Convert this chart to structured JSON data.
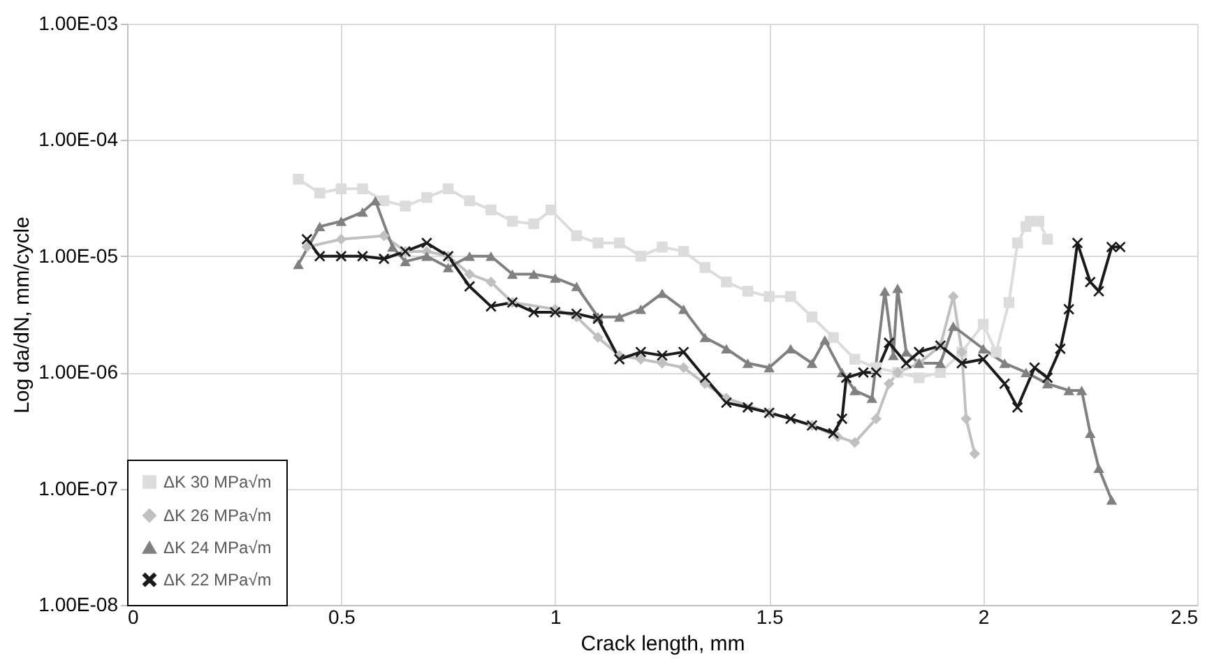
{
  "chart_data": {
    "type": "line",
    "xlabel": "Crack length, mm",
    "ylabel": "Log da/dN, mm/cycle",
    "log": "y",
    "grid": true,
    "legend": "bottom left",
    "line_style": "solid",
    "xlim": [
      0,
      2.5
    ],
    "xticks": [
      0,
      0.5,
      1,
      1.5,
      2,
      2.5
    ],
    "ylim": [
      1e-08,
      0.001
    ],
    "yticks": [
      {
        "value": 1e-08,
        "label": "1.00E-08"
      },
      {
        "value": 1e-07,
        "label": "1.00E-07"
      },
      {
        "value": 1e-06,
        "label": "1.00E-06"
      },
      {
        "value": 1e-05,
        "label": "1.00E-05"
      },
      {
        "value": 0.0001,
        "label": "1.00E-04"
      },
      {
        "value": 0.001,
        "label": "1.00E-03"
      }
    ],
    "series": [
      {
        "name": "ΔK 30 MPa√m",
        "color": "#dcdcdc",
        "marker": "square",
        "x": [
          0.4,
          0.45,
          0.5,
          0.55,
          0.6,
          0.65,
          0.7,
          0.75,
          0.8,
          0.85,
          0.9,
          0.95,
          0.99,
          1.05,
          1.1,
          1.15,
          1.2,
          1.25,
          1.3,
          1.35,
          1.4,
          1.45,
          1.5,
          1.55,
          1.6,
          1.65,
          1.7,
          1.75,
          1.8,
          1.85,
          1.9,
          1.95,
          2.0,
          2.03,
          2.06,
          2.08,
          2.1,
          2.11,
          2.13,
          2.15
        ],
        "values": [
          4.6e-05,
          3.5e-05,
          3.8e-05,
          3.8e-05,
          3e-05,
          2.7e-05,
          3.2e-05,
          3.8e-05,
          3e-05,
          2.5e-05,
          2e-05,
          1.9e-05,
          2.5e-05,
          1.5e-05,
          1.3e-05,
          1.3e-05,
          1e-05,
          1.2e-05,
          1.1e-05,
          8e-06,
          6e-06,
          5e-06,
          4.5e-06,
          4.5e-06,
          3e-06,
          2e-06,
          1.3e-06,
          1.1e-06,
          1e-06,
          9e-07,
          1e-06,
          1.5e-06,
          2.6e-06,
          1.5e-06,
          4e-06,
          1.3e-05,
          1.8e-05,
          2e-05,
          2e-05,
          1.4e-05
        ]
      },
      {
        "name": "ΔK 26 MPa√m",
        "color": "#c0c0c0",
        "marker": "diamond",
        "x": [
          0.42,
          0.5,
          0.6,
          0.65,
          0.7,
          0.75,
          0.8,
          0.85,
          0.9,
          1.0,
          1.05,
          1.1,
          1.15,
          1.2,
          1.25,
          1.3,
          1.35,
          1.4,
          1.5,
          1.6,
          1.66,
          1.7,
          1.75,
          1.78,
          1.8,
          1.85,
          1.9,
          1.93,
          1.95,
          1.96,
          1.98
        ],
        "values": [
          1.2e-05,
          1.4e-05,
          1.5e-05,
          1.1e-05,
          1.1e-05,
          1e-05,
          7e-06,
          6e-06,
          4e-06,
          3.5e-06,
          3e-06,
          2e-06,
          1.4e-06,
          1.3e-06,
          1.2e-06,
          1.1e-06,
          8e-07,
          6e-07,
          4.5e-07,
          3.5e-07,
          2.8e-07,
          2.5e-07,
          4e-07,
          8e-07,
          1e-06,
          1.2e-06,
          1.7e-06,
          4.5e-06,
          1.5e-06,
          4e-07,
          2e-07
        ]
      },
      {
        "name": "ΔK 24 MPa√m",
        "color": "#808080",
        "marker": "triangle",
        "x": [
          0.4,
          0.45,
          0.5,
          0.55,
          0.58,
          0.62,
          0.65,
          0.7,
          0.75,
          0.8,
          0.85,
          0.9,
          0.95,
          1.0,
          1.05,
          1.1,
          1.15,
          1.2,
          1.25,
          1.3,
          1.35,
          1.4,
          1.45,
          1.5,
          1.55,
          1.6,
          1.63,
          1.67,
          1.7,
          1.74,
          1.77,
          1.79,
          1.8,
          1.82,
          1.85,
          1.9,
          1.93,
          2.0,
          2.05,
          2.1,
          2.15,
          2.2,
          2.23,
          2.25,
          2.27,
          2.3
        ],
        "values": [
          8.5e-06,
          1.8e-05,
          2e-05,
          2.4e-05,
          3e-05,
          1.2e-05,
          9e-06,
          1e-05,
          8e-06,
          1e-05,
          1e-05,
          7e-06,
          7e-06,
          6.5e-06,
          5.5e-06,
          3e-06,
          3e-06,
          3.5e-06,
          4.8e-06,
          3.5e-06,
          2e-06,
          1.6e-06,
          1.2e-06,
          1.1e-06,
          1.6e-06,
          1.2e-06,
          1.9e-06,
          1e-06,
          7e-07,
          6e-07,
          5e-06,
          1.4e-06,
          5.3e-06,
          1.5e-06,
          1.2e-06,
          1.2e-06,
          2.5e-06,
          1.6e-06,
          1.2e-06,
          1e-06,
          8e-07,
          7e-07,
          7e-07,
          3e-07,
          1.5e-07,
          8e-08
        ]
      },
      {
        "name": "ΔK 22 MPa√m",
        "color": "#1a1a1a",
        "marker": "cross",
        "x": [
          0.42,
          0.45,
          0.5,
          0.55,
          0.6,
          0.65,
          0.7,
          0.75,
          0.8,
          0.85,
          0.9,
          0.95,
          1.0,
          1.05,
          1.1,
          1.15,
          1.2,
          1.25,
          1.3,
          1.35,
          1.4,
          1.45,
          1.5,
          1.55,
          1.6,
          1.65,
          1.67,
          1.68,
          1.72,
          1.75,
          1.78,
          1.82,
          1.85,
          1.9,
          1.95,
          2.0,
          2.05,
          2.08,
          2.12,
          2.15,
          2.18,
          2.2,
          2.22,
          2.25,
          2.27,
          2.3,
          2.32
        ],
        "values": [
          1.4e-05,
          1e-05,
          1e-05,
          1e-05,
          9.5e-06,
          1.1e-05,
          1.3e-05,
          1e-05,
          5.5e-06,
          3.7e-06,
          4e-06,
          3.3e-06,
          3.3e-06,
          3.2e-06,
          2.9e-06,
          1.3e-06,
          1.5e-06,
          1.4e-06,
          1.5e-06,
          9e-07,
          5.5e-07,
          5e-07,
          4.5e-07,
          4e-07,
          3.5e-07,
          3e-07,
          4e-07,
          9e-07,
          1e-06,
          1e-06,
          1.8e-06,
          1.2e-06,
          1.5e-06,
          1.7e-06,
          1.2e-06,
          1.3e-06,
          8e-07,
          5e-07,
          1.1e-06,
          9e-07,
          1.6e-06,
          3.5e-06,
          1.3e-05,
          6e-06,
          5e-06,
          1.2e-05,
          1.2e-05
        ]
      }
    ]
  }
}
